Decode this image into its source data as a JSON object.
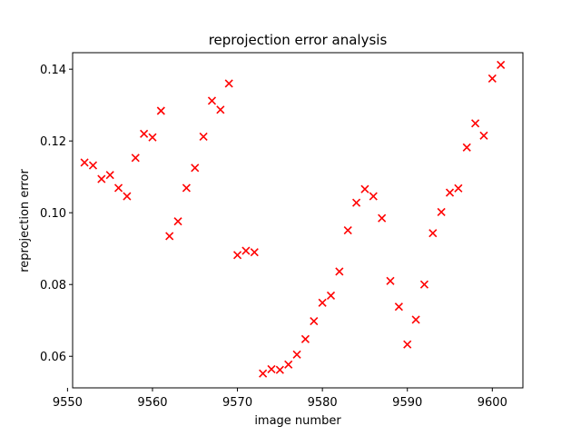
{
  "chart_data": {
    "type": "scatter",
    "title": "reprojection error analysis",
    "xlabel": "image number",
    "ylabel": "reprojection error",
    "xlim": [
      9550.6,
      9603.6
    ],
    "ylim": [
      0.0512,
      0.1446
    ],
    "xticks": [
      9550,
      9560,
      9570,
      9580,
      9590,
      9600
    ],
    "yticks": [
      0.06,
      0.08,
      0.1,
      0.12,
      0.14
    ],
    "ytick_labels": [
      "0.06",
      "0.08",
      "0.10",
      "0.12",
      "0.14"
    ],
    "grid": false,
    "marker": "x",
    "color": "#ff0000",
    "series": [
      {
        "points": [
          [
            9552,
            0.114
          ],
          [
            9553,
            0.1132
          ],
          [
            9554,
            0.1094
          ],
          [
            9555,
            0.1105
          ],
          [
            9556,
            0.1069
          ],
          [
            9557,
            0.1046
          ],
          [
            9558,
            0.1153
          ],
          [
            9559,
            0.122
          ],
          [
            9560,
            0.121
          ],
          [
            9561,
            0.1284
          ],
          [
            9562,
            0.0935
          ],
          [
            9563,
            0.0976
          ],
          [
            9564,
            0.1069
          ],
          [
            9565,
            0.1125
          ],
          [
            9566,
            0.1212
          ],
          [
            9567,
            0.1312
          ],
          [
            9568,
            0.1287
          ],
          [
            9569,
            0.136
          ],
          [
            9570,
            0.0882
          ],
          [
            9571,
            0.0894
          ],
          [
            9572,
            0.089
          ],
          [
            9573,
            0.0552
          ],
          [
            9574,
            0.0564
          ],
          [
            9575,
            0.0562
          ],
          [
            9576,
            0.0577
          ],
          [
            9577,
            0.0605
          ],
          [
            9578,
            0.0648
          ],
          [
            9579,
            0.0698
          ],
          [
            9580,
            0.0749
          ],
          [
            9581,
            0.0769
          ],
          [
            9582,
            0.0836
          ],
          [
            9583,
            0.0951
          ],
          [
            9584,
            0.1028
          ],
          [
            9585,
            0.1066
          ],
          [
            9586,
            0.1046
          ],
          [
            9587,
            0.0985
          ],
          [
            9588,
            0.081
          ],
          [
            9589,
            0.0738
          ],
          [
            9590,
            0.0633
          ],
          [
            9591,
            0.0702
          ],
          [
            9592,
            0.08
          ],
          [
            9593,
            0.0943
          ],
          [
            9594,
            0.1002
          ],
          [
            9595,
            0.1056
          ],
          [
            9596,
            0.1068
          ],
          [
            9597,
            0.1182
          ],
          [
            9598,
            0.1249
          ],
          [
            9599,
            0.1215
          ],
          [
            9600,
            0.1374
          ],
          [
            9601,
            0.1412
          ]
        ]
      }
    ]
  }
}
